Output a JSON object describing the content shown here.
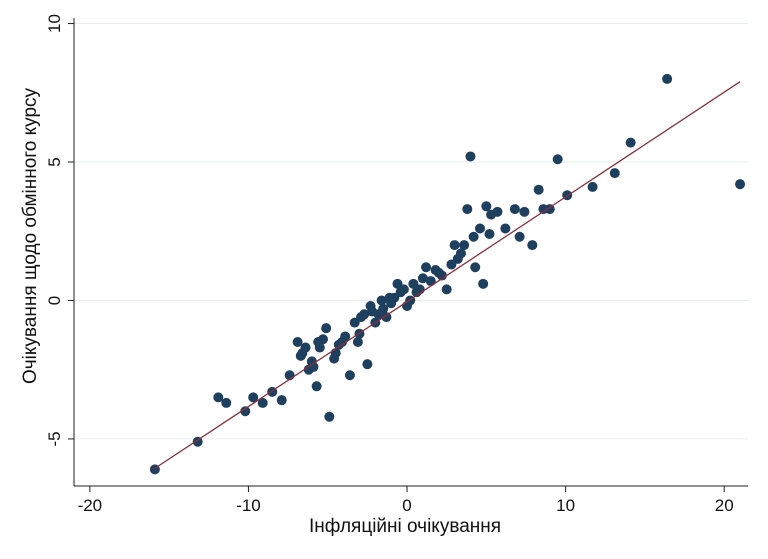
{
  "chart_data": {
    "type": "scatter",
    "xlabel": "Інфляційні очікування",
    "ylabel": "Очікування щодо обмінного курсу",
    "xlim": [
      -21,
      21.5
    ],
    "ylim": [
      -6.7,
      10.2
    ],
    "x_ticks": [
      -20,
      -10,
      0,
      10,
      20
    ],
    "y_ticks": [
      -5,
      0,
      5,
      10
    ],
    "grid": "horizontal",
    "legend": "none",
    "colors": {
      "points": "#1f3f5f",
      "fit_line": "#8b2f3a",
      "grid": "#e6edf2",
      "axis": "#222222"
    },
    "fit_line": {
      "x": [
        -16,
        21
      ],
      "y": [
        -6.1,
        7.9
      ]
    },
    "series": [
      {
        "x": [
          -15.9,
          -13.2,
          -11.9,
          -11.4,
          -10.2,
          -9.7,
          -9.1,
          -8.5,
          -7.9,
          -7.4,
          -6.9,
          -6.7,
          -6.6,
          -6.4,
          -6.2,
          -6.0,
          -5.9,
          -5.7,
          -5.6,
          -5.5,
          -5.3,
          -5.1,
          -4.9,
          -4.6,
          -4.5,
          -4.3,
          -4.1,
          -3.9,
          -3.6,
          -3.3,
          -3.1,
          -3.0,
          -2.9,
          -2.7,
          -2.5,
          -2.3,
          -2.2,
          -2.0,
          -1.8,
          -1.6,
          -1.5,
          -1.3,
          -1.1,
          -1.0,
          -0.8,
          -0.6,
          -0.4,
          -0.2,
          0.0,
          0.2,
          0.4,
          0.6,
          0.8,
          1.0,
          1.2,
          1.5,
          1.8,
          2.0,
          2.2,
          2.5,
          2.8,
          3.0,
          3.2,
          3.4,
          3.6,
          3.8,
          4.0,
          4.2,
          4.3,
          4.6,
          4.8,
          5.0,
          5.2,
          5.3,
          5.7,
          6.2,
          6.8,
          7.1,
          7.4,
          7.9,
          8.3,
          8.6,
          9.0,
          9.5,
          10.1,
          11.7,
          13.1,
          14.1,
          16.4,
          21.0
        ],
        "y": [
          -6.1,
          -5.1,
          -3.5,
          -3.7,
          -4.0,
          -3.5,
          -3.7,
          -3.3,
          -3.6,
          -2.7,
          -1.5,
          -2.0,
          -1.9,
          -1.7,
          -2.5,
          -2.2,
          -2.4,
          -3.1,
          -1.5,
          -1.7,
          -1.4,
          -1.0,
          -4.2,
          -2.1,
          -1.9,
          -1.6,
          -1.5,
          -1.3,
          -2.7,
          -0.8,
          -1.5,
          -1.2,
          -0.6,
          -0.5,
          -2.3,
          -0.2,
          -0.4,
          -0.8,
          -0.5,
          0.0,
          -0.3,
          -0.6,
          0.1,
          -0.1,
          0.1,
          0.6,
          0.3,
          0.4,
          -0.2,
          0.0,
          0.6,
          0.3,
          0.4,
          0.8,
          1.2,
          0.7,
          1.1,
          1.0,
          0.9,
          0.4,
          1.3,
          2.0,
          1.5,
          1.7,
          2.0,
          3.3,
          5.2,
          2.3,
          1.2,
          2.6,
          0.6,
          3.4,
          2.4,
          3.1,
          3.2,
          2.6,
          3.3,
          2.3,
          3.2,
          2.0,
          4.0,
          3.3,
          3.3,
          5.1,
          3.8,
          4.1,
          4.6,
          5.7,
          8.0,
          4.2
        ]
      }
    ]
  }
}
